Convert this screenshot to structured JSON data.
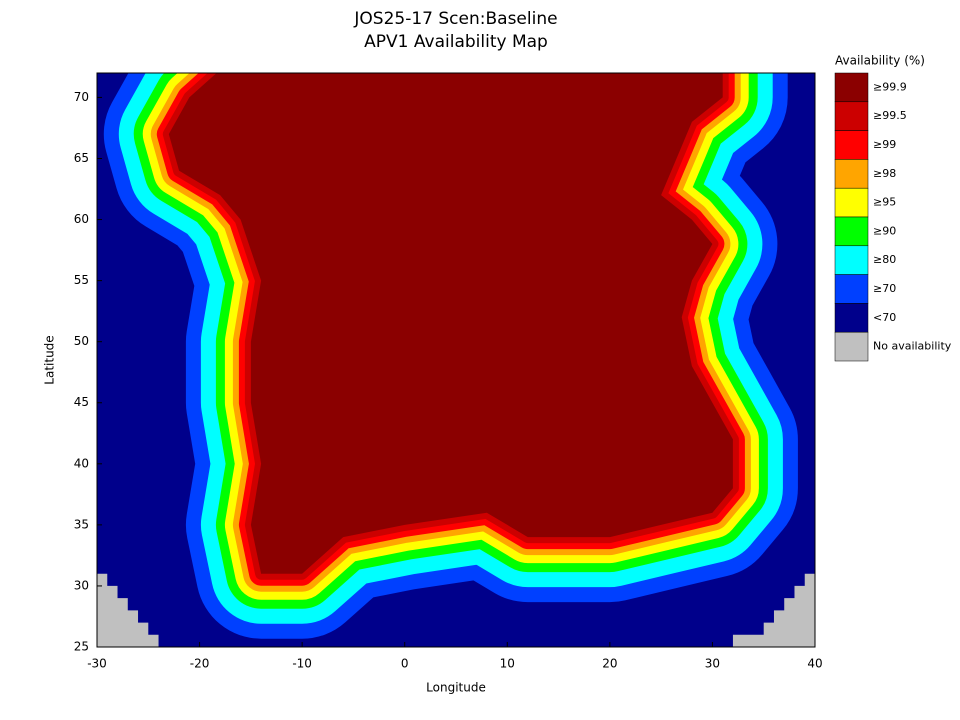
{
  "chart_data": {
    "type": "map",
    "title": "JOS25-17 Scen:Baseline",
    "subtitle": "APV1 Availability Map",
    "x_label": "Longitude",
    "y_label": "Latitude",
    "xlim": [
      -30,
      40
    ],
    "ylim": [
      25,
      72
    ],
    "xticks": [
      -30,
      -20,
      -10,
      0,
      10,
      20,
      30,
      40
    ],
    "yticks": [
      25,
      30,
      35,
      40,
      45,
      50,
      55,
      60,
      65,
      70
    ],
    "legend_title": "Availability (%)",
    "legend": [
      {
        "name": "≥99.9",
        "color": "#8b0000"
      },
      {
        "name": "≥99.5",
        "color": "#cc0000"
      },
      {
        "name": "≥99",
        "color": "#ff0000"
      },
      {
        "name": "≥98",
        "color": "#ffa500"
      },
      {
        "name": "≥95",
        "color": "#ffff00"
      },
      {
        "name": "≥90",
        "color": "#00ff00"
      },
      {
        "name": "≥80",
        "color": "#00ffff"
      },
      {
        "name": "≥70",
        "color": "#0040ff"
      },
      {
        "name": "<70",
        "color": "#00008b"
      },
      {
        "name": "No availability",
        "color": "#c0c0c0"
      }
    ]
  }
}
